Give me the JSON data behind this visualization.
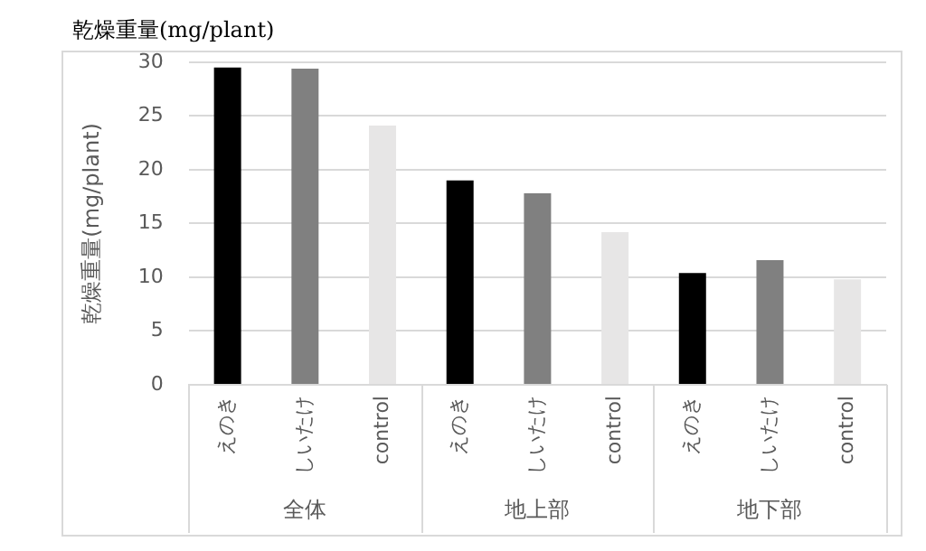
{
  "chart_data": {
    "type": "bar",
    "title": "乾燥重量(mg/plant)",
    "ylabel": "乾燥重量(mg/plant)",
    "categories": [
      "えのき",
      "しいたけ",
      "control",
      "えのき",
      "しいたけ",
      "control",
      "えのき",
      "しいたけ",
      "control"
    ],
    "values": [
      29.5,
      29.4,
      24.1,
      19.0,
      17.8,
      14.2,
      10.4,
      11.6,
      9.8
    ],
    "colors": [
      "#000000",
      "#808080",
      "#e7e6e6",
      "#000000",
      "#808080",
      "#e7e6e6",
      "#000000",
      "#808080",
      "#e7e6e6"
    ],
    "annotations": [
      "全体",
      "地上部",
      "地下部"
    ],
    "ylim": [
      0,
      30
    ],
    "yticks": [
      0,
      5,
      10,
      15,
      20,
      25,
      30
    ],
    "grid": "y",
    "legend": false
  }
}
